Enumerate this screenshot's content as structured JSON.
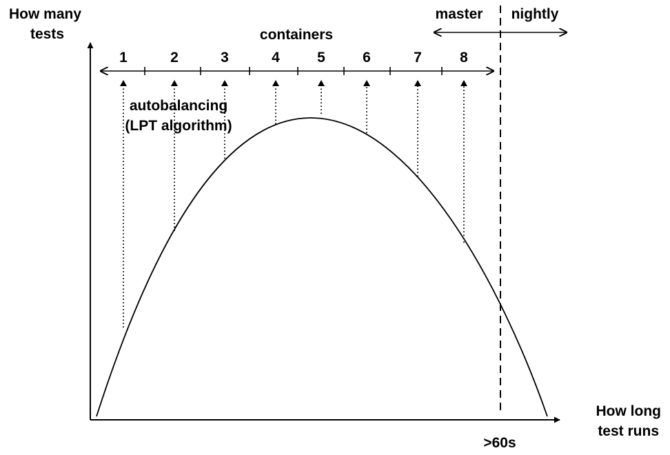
{
  "y_axis_label": [
    "How many",
    "tests"
  ],
  "x_axis_label": [
    "How long",
    "test runs"
  ],
  "containers_label": "containers",
  "container_numbers": [
    "1",
    "2",
    "3",
    "4",
    "5",
    "6",
    "7",
    "8"
  ],
  "annotation": [
    "autobalancing",
    "(LPT algorithm)"
  ],
  "branch_left": "master",
  "branch_right": "nightly",
  "threshold_label": ">60s"
}
